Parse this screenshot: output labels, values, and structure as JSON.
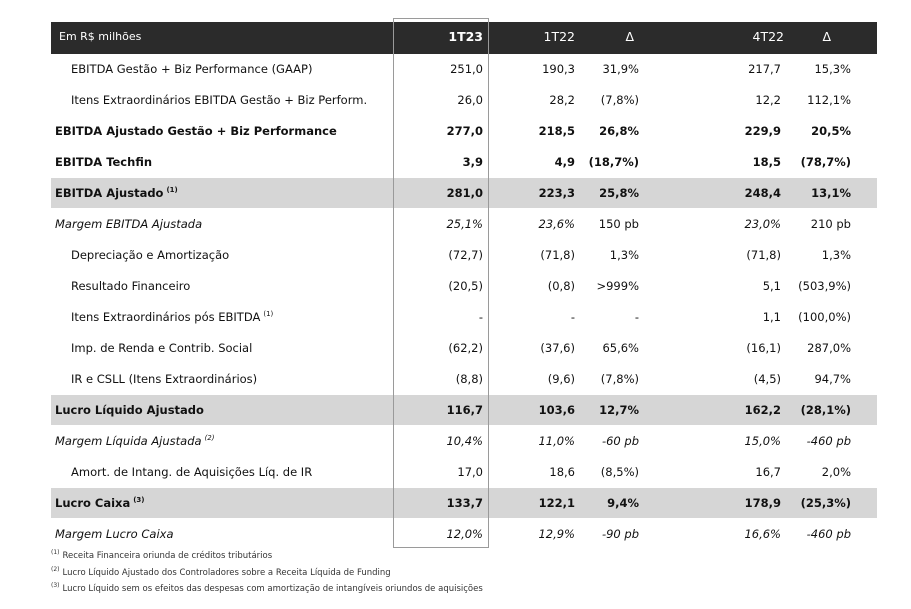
{
  "header": {
    "label": "Em R$ milhões",
    "cols": [
      "1T23",
      "1T22",
      "Δ",
      "4T22",
      "Δ"
    ]
  },
  "rows": [
    {
      "label": "EBITDA Gestão + Biz Performance (GAAP)",
      "sup": "",
      "indent": true,
      "bold": false,
      "italic": false,
      "shade": false,
      "values": [
        "251,0",
        "190,3",
        "31,9%",
        "217,7",
        "15,3%"
      ]
    },
    {
      "label": "Itens Extraordinários EBITDA Gestão + Biz Perform.",
      "sup": "",
      "indent": true,
      "bold": false,
      "italic": false,
      "shade": false,
      "values": [
        "26,0",
        "28,2",
        "(7,8%)",
        "12,2",
        "112,1%"
      ]
    },
    {
      "label": "EBITDA Ajustado Gestão + Biz Performance",
      "sup": "",
      "indent": false,
      "bold": true,
      "italic": false,
      "shade": false,
      "values": [
        "277,0",
        "218,5",
        "26,8%",
        "229,9",
        "20,5%"
      ]
    },
    {
      "label": "EBITDA Techfin",
      "sup": "",
      "indent": false,
      "bold": true,
      "italic": false,
      "shade": false,
      "values": [
        "3,9",
        "4,9",
        "(18,7%)",
        "18,5",
        "(78,7%)"
      ]
    },
    {
      "label": "EBITDA Ajustado",
      "sup": "(1)",
      "indent": false,
      "bold": true,
      "italic": false,
      "shade": true,
      "values": [
        "281,0",
        "223,3",
        "25,8%",
        "248,4",
        "13,1%"
      ]
    },
    {
      "label": "Margem EBITDA Ajustada",
      "sup": "",
      "indent": false,
      "bold": false,
      "italic": true,
      "shade": false,
      "values": [
        "25,1%",
        "23,6%",
        "150 pb",
        "23,0%",
        "210 pb"
      ]
    },
    {
      "label": "Depreciação e Amortização",
      "sup": "",
      "indent": true,
      "bold": false,
      "italic": false,
      "shade": false,
      "values": [
        "(72,7)",
        "(71,8)",
        "1,3%",
        "(71,8)",
        "1,3%"
      ]
    },
    {
      "label": "Resultado Financeiro",
      "sup": "",
      "indent": true,
      "bold": false,
      "italic": false,
      "shade": false,
      "values": [
        "(20,5)",
        "(0,8)",
        ">999%",
        "5,1",
        "(503,9%)"
      ]
    },
    {
      "label": "Itens Extraordinários pós EBITDA",
      "sup": "(1)",
      "indent": true,
      "bold": false,
      "italic": false,
      "shade": false,
      "values": [
        "-",
        "-",
        "-",
        "1,1",
        "(100,0%)"
      ]
    },
    {
      "label": "Imp. de Renda e Contrib. Social",
      "sup": "",
      "indent": true,
      "bold": false,
      "italic": false,
      "shade": false,
      "values": [
        "(62,2)",
        "(37,6)",
        "65,6%",
        "(16,1)",
        "287,0%"
      ]
    },
    {
      "label": "IR e CSLL (Itens Extraordinários)",
      "sup": "",
      "indent": true,
      "bold": false,
      "italic": false,
      "shade": false,
      "values": [
        "(8,8)",
        "(9,6)",
        "(7,8%)",
        "(4,5)",
        "94,7%"
      ]
    },
    {
      "label": "Lucro Líquido Ajustado",
      "sup": "",
      "indent": false,
      "bold": true,
      "italic": false,
      "shade": true,
      "values": [
        "116,7",
        "103,6",
        "12,7%",
        "162,2",
        "(28,1%)"
      ]
    },
    {
      "label": "Margem Líquida Ajustada",
      "sup": "(2)",
      "indent": false,
      "bold": false,
      "italic": true,
      "shade": false,
      "values": [
        "10,4%",
        "11,0%",
        "-60 pb",
        "15,0%",
        "-460 pb"
      ]
    },
    {
      "label": "Amort. de Intang. de Aquisições Líq. de IR",
      "sup": "",
      "indent": true,
      "bold": false,
      "italic": false,
      "shade": false,
      "values": [
        "17,0",
        "18,6",
        "(8,5%)",
        "16,7",
        "2,0%"
      ]
    },
    {
      "label": "Lucro Caixa",
      "sup": "(3)",
      "indent": false,
      "bold": true,
      "italic": false,
      "shade": true,
      "values": [
        "133,7",
        "122,1",
        "9,4%",
        "178,9",
        "(25,3%)"
      ]
    },
    {
      "label": "Margem Lucro Caixa",
      "sup": "",
      "indent": false,
      "bold": false,
      "italic": true,
      "shade": false,
      "values": [
        "12,0%",
        "12,9%",
        "-90 pb",
        "16,6%",
        "-460 pb"
      ]
    }
  ],
  "footnotes": [
    {
      "mark": "(1)",
      "text": "Receita Financeira oriunda de créditos tributários"
    },
    {
      "mark": "(2)",
      "text": "Lucro Líquido Ajustado dos Controladores sobre a Receita Líquida de Funding"
    },
    {
      "mark": "(3)",
      "text": "Lucro Líquido sem os efeitos das despesas com amortização de intangíveis oriundos de aquisições"
    }
  ]
}
